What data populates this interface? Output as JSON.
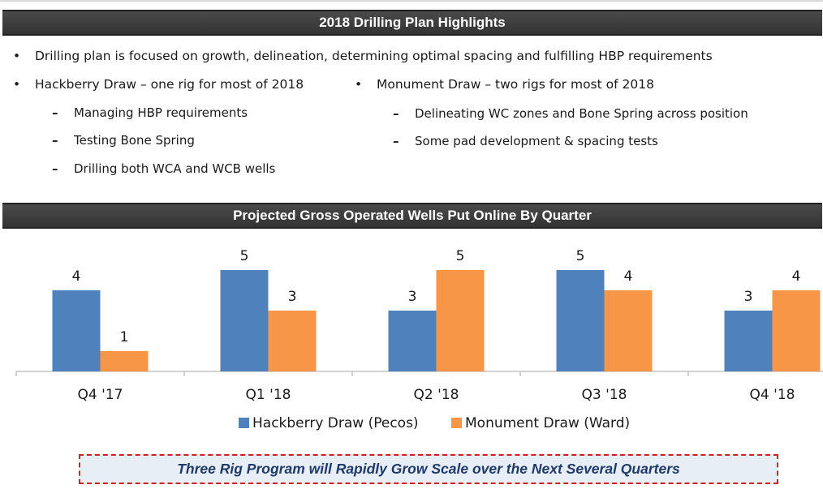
{
  "highlights": {
    "header": "2018 Drilling Plan Highlights",
    "bullet_main": "Drilling plan is focused on growth, delineation, determining optimal spacing and fulfilling HBP requirements",
    "hackberry": {
      "title": "Hackberry Draw – one rig for most of 2018",
      "items": [
        "Managing HBP requirements",
        "Testing Bone Spring",
        "Drilling both WCA and WCB wells"
      ]
    },
    "monument": {
      "title": "Monument Draw – two rigs for most of 2018",
      "items": [
        "Delineating WC zones and Bone Spring across position",
        "Some pad development & spacing tests"
      ]
    },
    "bullet_glyph": "•",
    "dash_glyph": "–"
  },
  "chart_header": "Projected Gross Operated Wells Put Online By Quarter",
  "chart_data": {
    "type": "bar",
    "categories": [
      "Q4 '17",
      "Q1 '18",
      "Q2 '18",
      "Q3 '18",
      "Q4 '18"
    ],
    "series": [
      {
        "name": "Hackberry Draw (Pecos)",
        "values": [
          4,
          5,
          3,
          5,
          3
        ],
        "color": "#4f81bd"
      },
      {
        "name": "Monument Draw (Ward)",
        "values": [
          1,
          3,
          5,
          4,
          4
        ],
        "color": "#f79646"
      }
    ],
    "ylim": [
      0,
      5
    ],
    "data_labels": true,
    "grid": false,
    "legend_position": "bottom"
  },
  "banner": "Three Rig Program will Rapidly Grow Scale over the Next Several Quarters"
}
